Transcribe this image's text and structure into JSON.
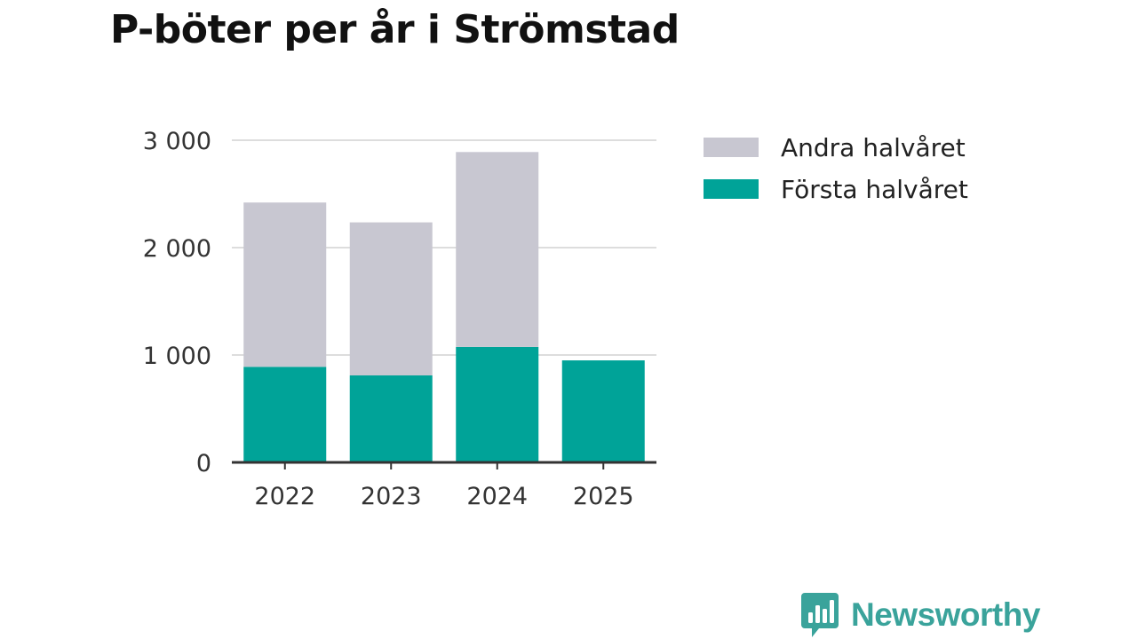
{
  "chart_data": {
    "type": "bar",
    "stacked": true,
    "title": "P-böter per år i Strömstad",
    "categories": [
      "2022",
      "2023",
      "2024",
      "2025"
    ],
    "series": [
      {
        "name": "Första halvåret",
        "color": "#00a398",
        "values": [
          890,
          810,
          1075,
          950
        ]
      },
      {
        "name": "Andra halvåret",
        "color": "#c8c7d1",
        "values": [
          1530,
          1425,
          1815,
          0
        ]
      }
    ],
    "legend_order": [
      "Andra halvåret",
      "Första halvåret"
    ],
    "ylim": [
      0,
      3000
    ],
    "yticks": [
      0,
      1000,
      2000,
      3000
    ],
    "ytick_labels": [
      "0",
      "1 000",
      "2 000",
      "3 000"
    ],
    "xlabel": "",
    "ylabel": "",
    "grid": true,
    "legend_position": "right"
  },
  "brand": {
    "name": "Newsworthy",
    "color": "#3aa39b"
  }
}
